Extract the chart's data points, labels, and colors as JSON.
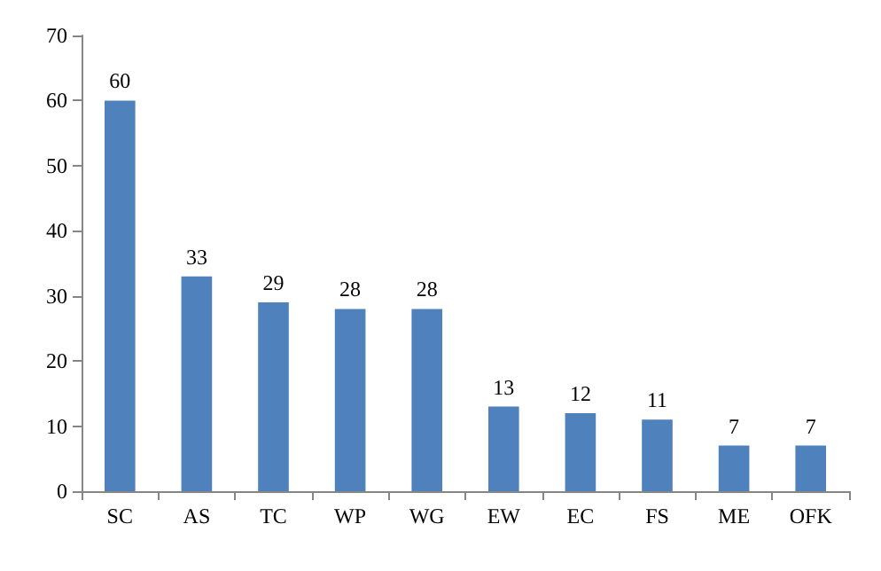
{
  "chart_data": {
    "type": "bar",
    "categories": [
      "SC",
      "AS",
      "TC",
      "WP",
      "WG",
      "EW",
      "EC",
      "FS",
      "ME",
      "OFK"
    ],
    "values": [
      60,
      33,
      29,
      28,
      28,
      13,
      12,
      11,
      7,
      7
    ],
    "color": "#4f81bd",
    "ylim": [
      0,
      70
    ],
    "yticks": [
      0,
      10,
      20,
      30,
      40,
      50,
      60,
      70
    ],
    "grid": false,
    "data_labels": true
  }
}
